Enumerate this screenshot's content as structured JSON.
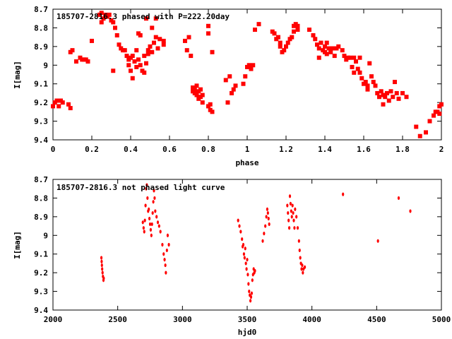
{
  "chart_data": [
    {
      "type": "scatter",
      "title": "185707-2816.3 phased with P=222.20day",
      "xlabel": "phase",
      "ylabel": "I[mag]",
      "xlim": [
        0,
        2
      ],
      "ylim": [
        8.7,
        9.4
      ],
      "y_inverted": true,
      "xticks": [
        "0",
        "0.2",
        "0.4",
        "0.6",
        "0.8",
        "1",
        "1.2",
        "1.4",
        "1.6",
        "1.8",
        "2"
      ],
      "yticks": [
        "8.7",
        "8.8",
        "8.9",
        "9",
        "9.1",
        "9.2",
        "9.3",
        "9.4"
      ],
      "marker_color": "#ff0000",
      "points": [
        [
          0.0,
          9.22
        ],
        [
          0.01,
          9.2
        ],
        [
          0.02,
          9.19
        ],
        [
          0.03,
          9.22
        ],
        [
          0.04,
          9.19
        ],
        [
          0.05,
          9.2
        ],
        [
          0.08,
          9.21
        ],
        [
          0.09,
          9.23
        ],
        [
          0.09,
          8.93
        ],
        [
          0.1,
          8.92
        ],
        [
          0.12,
          8.98
        ],
        [
          0.14,
          8.96
        ],
        [
          0.15,
          8.97
        ],
        [
          0.16,
          8.97
        ],
        [
          0.17,
          8.97
        ],
        [
          0.18,
          8.98
        ],
        [
          0.2,
          8.87
        ],
        [
          0.24,
          8.73
        ],
        [
          0.25,
          8.72
        ],
        [
          0.25,
          8.77
        ],
        [
          0.26,
          8.75
        ],
        [
          0.27,
          8.73
        ],
        [
          0.28,
          8.74
        ],
        [
          0.29,
          8.73
        ],
        [
          0.3,
          8.76
        ],
        [
          0.31,
          8.77
        ],
        [
          0.31,
          9.03
        ],
        [
          0.32,
          8.8
        ],
        [
          0.33,
          8.84
        ],
        [
          0.34,
          8.89
        ],
        [
          0.35,
          8.91
        ],
        [
          0.36,
          8.92
        ],
        [
          0.37,
          8.92
        ],
        [
          0.38,
          8.95
        ],
        [
          0.39,
          8.97
        ],
        [
          0.39,
          9.0
        ],
        [
          0.4,
          8.96
        ],
        [
          0.4,
          9.03
        ],
        [
          0.41,
          8.95
        ],
        [
          0.41,
          9.07
        ],
        [
          0.42,
          8.98
        ],
        [
          0.43,
          8.92
        ],
        [
          0.43,
          9.01
        ],
        [
          0.44,
          8.97
        ],
        [
          0.44,
          8.83
        ],
        [
          0.45,
          8.84
        ],
        [
          0.45,
          9.0
        ],
        [
          0.46,
          9.03
        ],
        [
          0.47,
          9.04
        ],
        [
          0.47,
          8.95
        ],
        [
          0.48,
          8.99
        ],
        [
          0.48,
          8.75
        ],
        [
          0.49,
          8.94
        ],
        [
          0.49,
          8.92
        ],
        [
          0.5,
          8.9
        ],
        [
          0.51,
          8.8
        ],
        [
          0.51,
          8.93
        ],
        [
          0.52,
          8.88
        ],
        [
          0.53,
          8.75
        ],
        [
          0.53,
          8.85
        ],
        [
          0.54,
          8.91
        ],
        [
          0.55,
          8.86
        ],
        [
          0.57,
          8.89
        ],
        [
          0.57,
          8.87
        ],
        [
          0.68,
          8.87
        ],
        [
          0.69,
          8.92
        ],
        [
          0.7,
          8.85
        ],
        [
          0.71,
          8.95
        ],
        [
          0.72,
          9.12
        ],
        [
          0.72,
          9.14
        ],
        [
          0.73,
          9.15
        ],
        [
          0.73,
          9.13
        ],
        [
          0.74,
          9.16
        ],
        [
          0.74,
          9.11
        ],
        [
          0.75,
          9.14
        ],
        [
          0.75,
          9.18
        ],
        [
          0.76,
          9.17
        ],
        [
          0.76,
          9.13
        ],
        [
          0.77,
          9.16
        ],
        [
          0.77,
          9.2
        ],
        [
          0.8,
          8.79
        ],
        [
          0.8,
          8.83
        ],
        [
          0.8,
          9.22
        ],
        [
          0.81,
          9.24
        ],
        [
          0.81,
          9.21
        ],
        [
          0.82,
          9.25
        ],
        [
          0.82,
          8.93
        ],
        [
          0.89,
          9.08
        ],
        [
          0.9,
          9.2
        ],
        [
          0.91,
          9.06
        ],
        [
          0.92,
          9.15
        ],
        [
          0.93,
          9.13
        ],
        [
          0.94,
          9.11
        ],
        [
          0.98,
          9.1
        ],
        [
          0.99,
          9.06
        ],
        [
          1.0,
          9.01
        ],
        [
          1.01,
          9.0
        ],
        [
          1.02,
          9.02
        ],
        [
          1.03,
          9.0
        ],
        [
          1.04,
          8.81
        ],
        [
          1.06,
          8.78
        ],
        [
          1.13,
          8.82
        ],
        [
          1.14,
          8.83
        ],
        [
          1.15,
          8.86
        ],
        [
          1.16,
          8.85
        ],
        [
          1.17,
          8.88
        ],
        [
          1.17,
          8.9
        ],
        [
          1.18,
          8.93
        ],
        [
          1.19,
          8.92
        ],
        [
          1.2,
          8.9
        ],
        [
          1.21,
          8.88
        ],
        [
          1.22,
          8.86
        ],
        [
          1.23,
          8.85
        ],
        [
          1.24,
          8.82
        ],
        [
          1.24,
          8.79
        ],
        [
          1.25,
          8.78
        ],
        [
          1.26,
          8.79
        ],
        [
          1.26,
          8.81
        ],
        [
          1.32,
          8.81
        ],
        [
          1.34,
          8.84
        ],
        [
          1.35,
          8.86
        ],
        [
          1.36,
          8.89
        ],
        [
          1.37,
          8.91
        ],
        [
          1.37,
          8.96
        ],
        [
          1.38,
          8.88
        ],
        [
          1.39,
          8.92
        ],
        [
          1.4,
          8.9
        ],
        [
          1.4,
          8.93
        ],
        [
          1.41,
          8.88
        ],
        [
          1.41,
          8.94
        ],
        [
          1.42,
          8.91
        ],
        [
          1.43,
          8.93
        ],
        [
          1.44,
          8.91
        ],
        [
          1.45,
          8.95
        ],
        [
          1.46,
          8.91
        ],
        [
          1.47,
          8.9
        ],
        [
          1.49,
          8.92
        ],
        [
          1.5,
          8.95
        ],
        [
          1.51,
          8.97
        ],
        [
          1.52,
          8.96
        ],
        [
          1.53,
          8.96
        ],
        [
          1.54,
          9.01
        ],
        [
          1.55,
          8.96
        ],
        [
          1.55,
          9.04
        ],
        [
          1.56,
          8.98
        ],
        [
          1.57,
          9.02
        ],
        [
          1.58,
          9.04
        ],
        [
          1.58,
          8.96
        ],
        [
          1.59,
          9.07
        ],
        [
          1.6,
          9.1
        ],
        [
          1.61,
          9.09
        ],
        [
          1.62,
          9.11
        ],
        [
          1.62,
          9.13
        ],
        [
          1.63,
          8.99
        ],
        [
          1.64,
          9.06
        ],
        [
          1.65,
          9.09
        ],
        [
          1.66,
          9.11
        ],
        [
          1.67,
          9.15
        ],
        [
          1.68,
          9.17
        ],
        [
          1.69,
          9.14
        ],
        [
          1.7,
          9.16
        ],
        [
          1.7,
          9.21
        ],
        [
          1.71,
          9.17
        ],
        [
          1.72,
          9.15
        ],
        [
          1.73,
          9.19
        ],
        [
          1.74,
          9.14
        ],
        [
          1.75,
          9.17
        ],
        [
          1.76,
          9.09
        ],
        [
          1.77,
          9.15
        ],
        [
          1.78,
          9.18
        ],
        [
          1.8,
          9.15
        ],
        [
          1.82,
          9.17
        ],
        [
          1.87,
          9.33
        ],
        [
          1.89,
          9.38
        ],
        [
          1.92,
          9.36
        ],
        [
          1.94,
          9.3
        ],
        [
          1.96,
          9.27
        ],
        [
          1.97,
          9.25
        ],
        [
          1.98,
          9.25
        ],
        [
          1.99,
          9.22
        ],
        [
          1.99,
          9.26
        ],
        [
          2.0,
          9.21
        ]
      ]
    },
    {
      "type": "scatter",
      "title": "185707-2816.3 not phased light curve",
      "xlabel": "hjd0",
      "ylabel": "I[mag]",
      "xlim": [
        2000,
        5000
      ],
      "ylim": [
        8.7,
        9.4
      ],
      "y_inverted": true,
      "xticks": [
        "2000",
        "2500",
        "3000",
        "3500",
        "4000",
        "4500",
        "5000"
      ],
      "yticks": [
        "8.7",
        "8.8",
        "8.9",
        "9",
        "9.1",
        "9.2",
        "9.3",
        "9.4"
      ],
      "marker_color": "#ff0000",
      "points": [
        [
          2374,
          9.12
        ],
        [
          2376,
          9.14
        ],
        [
          2378,
          9.16
        ],
        [
          2380,
          9.18
        ],
        [
          2383,
          9.2
        ],
        [
          2386,
          9.22
        ],
        [
          2390,
          9.24
        ],
        [
          2392,
          9.23
        ],
        [
          2694,
          8.93
        ],
        [
          2700,
          8.96
        ],
        [
          2705,
          8.98
        ],
        [
          2710,
          8.92
        ],
        [
          2715,
          8.84
        ],
        [
          2720,
          8.75
        ],
        [
          2725,
          8.73
        ],
        [
          2730,
          8.8
        ],
        [
          2735,
          8.87
        ],
        [
          2740,
          8.86
        ],
        [
          2745,
          8.91
        ],
        [
          2750,
          8.94
        ],
        [
          2755,
          8.97
        ],
        [
          2760,
          9.0
        ],
        [
          2765,
          8.94
        ],
        [
          2770,
          8.88
        ],
        [
          2775,
          8.82
        ],
        [
          2780,
          8.76
        ],
        [
          2785,
          8.8
        ],
        [
          2790,
          8.87
        ],
        [
          2800,
          8.9
        ],
        [
          2810,
          8.93
        ],
        [
          2820,
          8.95
        ],
        [
          2830,
          8.98
        ],
        [
          2845,
          9.05
        ],
        [
          2855,
          9.1
        ],
        [
          2862,
          9.13
        ],
        [
          2868,
          9.16
        ],
        [
          2872,
          9.2
        ],
        [
          2880,
          9.08
        ],
        [
          2886,
          9.0
        ],
        [
          2895,
          9.05
        ],
        [
          3430,
          8.92
        ],
        [
          3440,
          8.95
        ],
        [
          3450,
          8.98
        ],
        [
          3460,
          9.02
        ],
        [
          3465,
          9.06
        ],
        [
          3470,
          9.05
        ],
        [
          3475,
          9.1
        ],
        [
          3480,
          9.12
        ],
        [
          3485,
          9.07
        ],
        [
          3490,
          9.15
        ],
        [
          3495,
          9.18
        ],
        [
          3500,
          9.13
        ],
        [
          3505,
          9.21
        ],
        [
          3510,
          9.26
        ],
        [
          3515,
          9.3
        ],
        [
          3520,
          9.32
        ],
        [
          3525,
          9.35
        ],
        [
          3530,
          9.33
        ],
        [
          3535,
          9.31
        ],
        [
          3540,
          9.24
        ],
        [
          3545,
          9.21
        ],
        [
          3550,
          9.18
        ],
        [
          3555,
          9.2
        ],
        [
          3560,
          9.19
        ],
        [
          3620,
          9.03
        ],
        [
          3630,
          8.99
        ],
        [
          3640,
          8.95
        ],
        [
          3648,
          8.9
        ],
        [
          3655,
          8.86
        ],
        [
          3660,
          8.88
        ],
        [
          3665,
          8.91
        ],
        [
          3670,
          8.94
        ],
        [
          3810,
          8.84
        ],
        [
          3815,
          8.88
        ],
        [
          3820,
          8.92
        ],
        [
          3825,
          8.96
        ],
        [
          3830,
          8.79
        ],
        [
          3835,
          8.83
        ],
        [
          3840,
          8.87
        ],
        [
          3845,
          8.9
        ],
        [
          3850,
          8.84
        ],
        [
          3855,
          8.88
        ],
        [
          3860,
          8.92
        ],
        [
          3865,
          8.96
        ],
        [
          3870,
          8.86
        ],
        [
          3880,
          8.9
        ],
        [
          3890,
          8.96
        ],
        [
          3900,
          9.03
        ],
        [
          3905,
          9.08
        ],
        [
          3910,
          9.12
        ],
        [
          3915,
          9.15
        ],
        [
          3920,
          9.18
        ],
        [
          3925,
          9.16
        ],
        [
          3930,
          9.2
        ],
        [
          3935,
          9.18
        ],
        [
          3945,
          9.17
        ],
        [
          4240,
          8.78
        ],
        [
          4510,
          9.03
        ],
        [
          4670,
          8.8
        ],
        [
          4760,
          8.87
        ]
      ]
    }
  ]
}
